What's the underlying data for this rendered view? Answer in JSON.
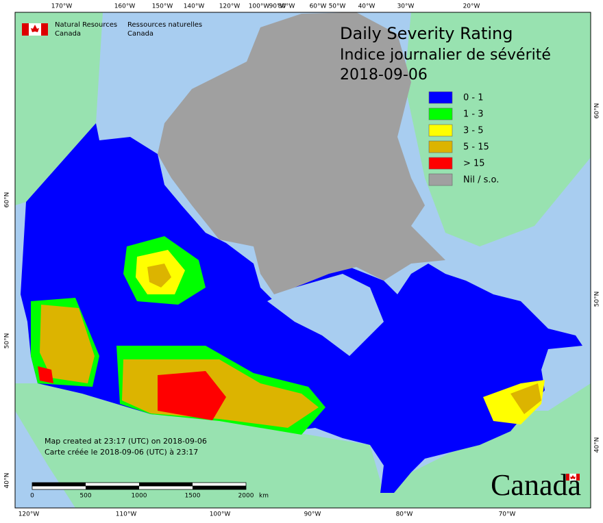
{
  "header": {
    "agency_en": "Natural Resources",
    "agency_en_2": "Canada",
    "agency_fr": "Ressources naturelles",
    "agency_fr_2": "Canada"
  },
  "title": {
    "line1": "Daily Severity Rating",
    "line2": "Indice journalier de sévérité",
    "date": "2018-09-06"
  },
  "legend": [
    {
      "label": "0 - 1",
      "color": "#0000ff"
    },
    {
      "label": "1 - 3",
      "color": "#00ff00"
    },
    {
      "label": "3 - 5",
      "color": "#ffff00"
    },
    {
      "label": "5 - 15",
      "color": "#dcb400"
    },
    {
      "label": "> 15",
      "color": "#ff0000"
    },
    {
      "label": "Nil / s.o.",
      "color": "#a0a0a0"
    }
  ],
  "top_labels": [
    "170°W",
    "160°W",
    "150°W",
    "140°W",
    "120°W",
    "100°W",
    "90°W",
    "80°W",
    "60°W",
    "50°W",
    "40°W",
    "30°W",
    "20°W"
  ],
  "bottom_labels": [
    "120°W",
    "110°W",
    "100°W",
    "90°W",
    "80°W",
    "70°W"
  ],
  "left_labels": [
    "60°N",
    "50°N",
    "40°N"
  ],
  "right_labels": [
    "60°N",
    "50°N",
    "40°N"
  ],
  "credits": [
    "Map created at 23:17 (UTC) on 2018-09-06",
    "Carte créée le 2018-09-06 (UTC) à 23:17"
  ],
  "scale": {
    "ticks": [
      "0",
      "500",
      "1000",
      "1500",
      "2000"
    ],
    "unit": "km"
  },
  "wordmark": "Canada"
}
